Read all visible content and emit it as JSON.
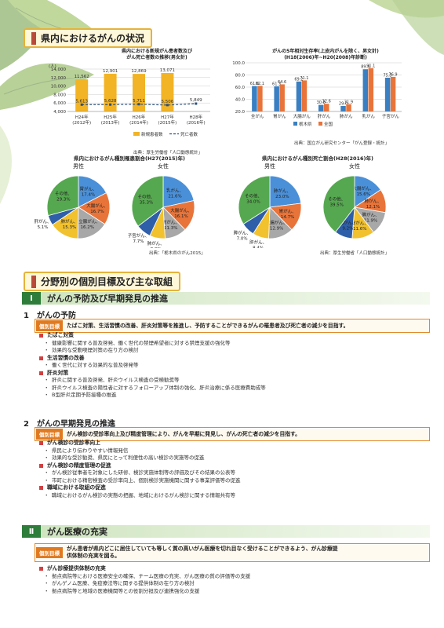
{
  "section1": {
    "title": "県内におけるがんの状況"
  },
  "chart1": {
    "title_line1": "県内における新規がん患者数及び",
    "title_line2": "がん死亡者数の推移(男女計)",
    "unit": "(人)",
    "source": "出典：厚生労働省「人口動態統計」",
    "legend": [
      "新規患者数",
      "死亡者数"
    ],
    "colors": {
      "bar": "#f2b324",
      "line": "#2b4f7a"
    }
  },
  "chart2": {
    "title_line1": "がんの5年相対生存率(上皮内がんを除く、男女計)",
    "title_line2": "(H18(2006)年~H20(2008)年診断)",
    "source": "出典：国立がん研究センター「がん登録・統計」",
    "legend": [
      "栃木県",
      "全国"
    ],
    "colors": {
      "tochigi": "#3a7fc1",
      "national": "#e8743a"
    }
  },
  "chart_data": [
    {
      "type": "bar",
      "categories": [
        "H24年\n(2012年)",
        "H25年\n(2013年)",
        "H26年\n(2014年)",
        "H27年\n(2015年)",
        "H28年\n(2016年)"
      ],
      "cat_line1": [
        "H24年",
        "H25年",
        "H26年",
        "H27年",
        "H28年"
      ],
      "cat_line2": [
        "(2012年)",
        "(2013年)",
        "(2014年)",
        "(2015年)",
        "(2016年)"
      ],
      "series": [
        {
          "name": "新規患者数",
          "values": [
            11562,
            12901,
            12869,
            13071,
            null
          ],
          "labels": [
            "11,562",
            "12,901",
            "12,869",
            "13,071",
            ""
          ]
        },
        {
          "name": "死亡者数",
          "values": [
            5613,
            5628,
            5711,
            5506,
            5849
          ],
          "labels": [
            "5,613",
            "5,628",
            "5,711",
            "5,506",
            "5,849"
          ]
        }
      ],
      "yticks": [
        "4,000",
        "6,000",
        "8,000",
        "10,000",
        "12,000",
        "14,000"
      ],
      "ytick_values": [
        4000,
        6000,
        8000,
        10000,
        12000,
        14000
      ],
      "ylim": [
        4000,
        14000
      ]
    },
    {
      "type": "bar",
      "categories": [
        "全がん",
        "胃がん",
        "大腸がん",
        "肝がん",
        "肺がん",
        "乳がん",
        "子宮がん"
      ],
      "series": [
        {
          "name": "栃木県",
          "values": [
            61.8,
            61.3,
            69.2,
            30.8,
            29.0,
            89.4,
            75.5
          ],
          "labels": [
            "61.8",
            "61.3",
            "69.2",
            "30.8",
            "29.0",
            "89.4",
            "75.5"
          ]
        },
        {
          "name": "全国",
          "values": [
            62.1,
            64.6,
            71.1,
            32.6,
            31.9,
            91.1,
            76.9
          ],
          "labels": [
            "62.1",
            "64.6",
            "71.1",
            "32.6",
            "31.9",
            "91.1",
            "76.9"
          ]
        }
      ],
      "yticks": [
        "20.0",
        "40.0",
        "60.0",
        "80.0",
        "100.0"
      ],
      "ytick_values": [
        20,
        40,
        60,
        80,
        100
      ],
      "ylim": [
        20,
        100
      ]
    },
    {
      "type": "pie",
      "group": "県内におけるがん種別罹患割合(H27(2015)年)",
      "title": "男性",
      "slices": [
        {
          "label": "胃がん、",
          "value": 17.4,
          "text": "17.4%",
          "color": "#4a90d9"
        },
        {
          "label": "大腸がん、",
          "value": 16.7,
          "text": "16.7%",
          "color": "#e8743a"
        },
        {
          "label": "前立腺がん、",
          "value": 16.2,
          "text": "16.2%",
          "color": "#a8a8a8"
        },
        {
          "label": "肺がん、",
          "value": 15.3,
          "text": "15.3%",
          "color": "#f2c12e"
        },
        {
          "label": "肝がん、",
          "value": 5.1,
          "text": "5.1%",
          "color": "#2e5fa8"
        },
        {
          "label": "その他、",
          "value": 29.3,
          "text": "29.3%",
          "color": "#55a84f"
        }
      ]
    },
    {
      "type": "pie",
      "group": "県内におけるがん種別罹患割合(H27(2015)年)",
      "title": "女性",
      "slices": [
        {
          "label": "乳がん、",
          "value": 21.6,
          "text": "21.6%",
          "color": "#4a90d9"
        },
        {
          "label": "大腸がん、",
          "value": 16.1,
          "text": "16.1%",
          "color": "#e8743a"
        },
        {
          "label": "胃がん、",
          "value": 11.3,
          "text": "11.3%",
          "color": "#a8a8a8"
        },
        {
          "label": "肺がん、",
          "value": 8.0,
          "text": "8.0%",
          "color": "#f2c12e"
        },
        {
          "label": "子宮がん、",
          "value": 7.7,
          "text": "7.7%",
          "color": "#2e5fa8"
        },
        {
          "label": "その他、",
          "value": 35.3,
          "text": "35.3%",
          "color": "#55a84f"
        }
      ]
    },
    {
      "type": "pie",
      "group": "県内におけるがん種別死亡割合(H28(2016)年)",
      "title": "男性",
      "slices": [
        {
          "label": "肺がん、",
          "value": 23.0,
          "text": "23.0%",
          "color": "#4a90d9"
        },
        {
          "label": "胃がん、",
          "value": 14.7,
          "text": "14.7%",
          "color": "#e8743a"
        },
        {
          "label": "大腸がん、",
          "value": 12.9,
          "text": "12.9%",
          "color": "#a8a8a8"
        },
        {
          "label": "肝がん、",
          "value": 8.4,
          "text": "8.4%",
          "color": "#f2c12e"
        },
        {
          "label": "膵がん、",
          "value": 7.0,
          "text": "7.0%",
          "color": "#2e5fa8"
        },
        {
          "label": "その他、",
          "value": 34.0,
          "text": "34.0%",
          "color": "#55a84f"
        }
      ]
    },
    {
      "type": "pie",
      "group": "県内におけるがん種別死亡割合(H28(2016)年)",
      "title": "女性",
      "slices": [
        {
          "label": "大腸がん、",
          "value": 15.6,
          "text": "15.6%",
          "color": "#4a90d9"
        },
        {
          "label": "肺がん、",
          "value": 12.1,
          "text": "12.1%",
          "color": "#e8743a"
        },
        {
          "label": "膵がん、",
          "value": 11.9,
          "text": "11.9%",
          "color": "#a8a8a8"
        },
        {
          "label": "胃がん、",
          "value": 11.6,
          "text": "11.6%",
          "color": "#f2c12e"
        },
        {
          "label": "乳がん、",
          "value": 9.2,
          "text": "9.2%",
          "color": "#2e5fa8"
        },
        {
          "label": "その他、",
          "value": 39.5,
          "text": "39.5%",
          "color": "#55a84f"
        }
      ]
    }
  ],
  "pies": {
    "incidence_title": "県内におけるがん種別罹患割合(H27(2015)年)",
    "incidence_source": "出典：「栃木県のがん2015」",
    "mortality_title": "県内におけるがん種別死亡割合(H28(2016)年)",
    "mortality_source": "出典：厚生労働省「人口動態統計」"
  },
  "section2": {
    "title": "分野別の個別目標及び主な取組"
  },
  "part1": {
    "num": "Ⅰ",
    "title": "がんの予防及び早期発見の推進",
    "sub1": {
      "head": "1　がんの予防",
      "tag": "個別目標",
      "goal": "たばこ対策、生活習慣の改善、肝炎対策等を推進し、予防することができるがんの罹患者及び死亡者の減少を目指す。",
      "groups": [
        {
          "h": "たばこ対策",
          "items": [
            "健康影響に関する普及啓発、働く世代の禁煙希望者に対する禁煙支援の強化等",
            "効果的な受動喫煙対策の在り方の検討"
          ]
        },
        {
          "h": "生活習慣の改善",
          "items": [
            "働く世代に対する効果的な普及啓発等"
          ]
        },
        {
          "h": "肝炎対策",
          "items": [
            "肝炎に関する普及啓発、肝炎ウイルス検査の受検勧奨等",
            "肝炎ウイルス検査の陽性者に対するフォローアップ体制の強化、肝炎治療に係る医療費助成等",
            "B型肝炎定期予防接種の推進"
          ]
        }
      ]
    },
    "sub2": {
      "head": "2　がんの早期発見の推進",
      "tag": "個別目標",
      "goal": "がん検診の受診率向上及び精度管理により、がんを早期に発見し、がんの死亡者の減少を目指す。",
      "groups": [
        {
          "h": "がん検診の受診率向上",
          "items": [
            "県民により伝わりやすい情報発信",
            "効果的な受診勧奨、県民にとって利便性の高い検診の実施等の促進"
          ]
        },
        {
          "h": "がん検診の精度管理の促進",
          "items": [
            "がん検診従事者を対象にした研修、検診実施体制等の評価及びその結果の公表等",
            "市町における精密検査の受診率向上、個別検診実施機関に関する事業評価等の促進"
          ]
        },
        {
          "h": "職域における取組の促進",
          "items": [
            "職域におけるがん検診の実態の把握、地域におけるがん検診に関する情報共有等"
          ]
        }
      ]
    }
  },
  "part2": {
    "num": "Ⅱ",
    "title": "がん医療の充実",
    "tag": "個別目標",
    "goal_line1": "がん患者が県内どこに居住していても等しく質の高いがん医療を切れ目なく受けることができるよう、がん診療提",
    "goal_line2": "供体制の充実を図る。",
    "groups": [
      {
        "h": "がん診療提供体制の充実",
        "items": [
          "拠点病院等における医療安全の確保、チーム医療の充実、がん医療の質の評価等の支援",
          "がんゲノム医療、免疫療法等に関する提供体制の在り方の検討",
          "拠点病院等と地域の医療機関等との役割分担及び連携強化の支援"
        ]
      }
    ]
  }
}
